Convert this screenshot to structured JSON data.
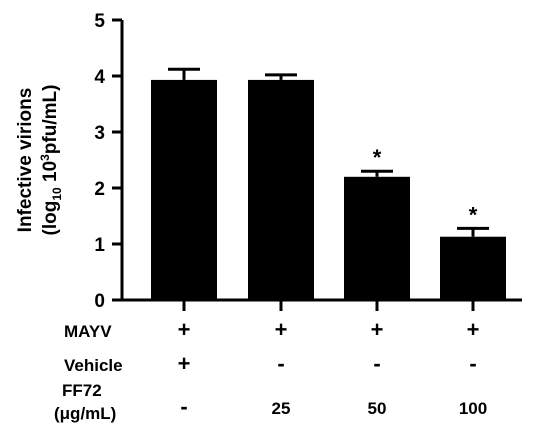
{
  "chart_data": {
    "type": "bar",
    "ylabel_line1": "Infective virions",
    "ylabel_line2": {
      "open": "(log",
      "sub": "10",
      "mid": " 10",
      "sup": "3",
      "close": "pfu/mL)"
    },
    "ylim": [
      0,
      5
    ],
    "yticks": [
      "0",
      "1",
      "2",
      "3",
      "4",
      "5"
    ],
    "grid": false,
    "bar_color": "#000000",
    "bars": [
      {
        "value": 3.93,
        "error": 0.19,
        "annotation": ""
      },
      {
        "value": 3.93,
        "error": 0.09,
        "annotation": ""
      },
      {
        "value": 2.2,
        "error": 0.1,
        "annotation": "*"
      },
      {
        "value": 1.13,
        "error": 0.15,
        "annotation": "*"
      }
    ],
    "conditions": [
      {
        "label": "MAYV",
        "values": [
          "+",
          "+",
          "+",
          "+"
        ]
      },
      {
        "label": "Vehicle",
        "values": [
          "+",
          "-",
          "-",
          "-"
        ]
      },
      {
        "label": "FF72",
        "label_line2": "(μg/mL)",
        "values": [
          "-",
          "25",
          "50",
          "100"
        ]
      }
    ]
  }
}
